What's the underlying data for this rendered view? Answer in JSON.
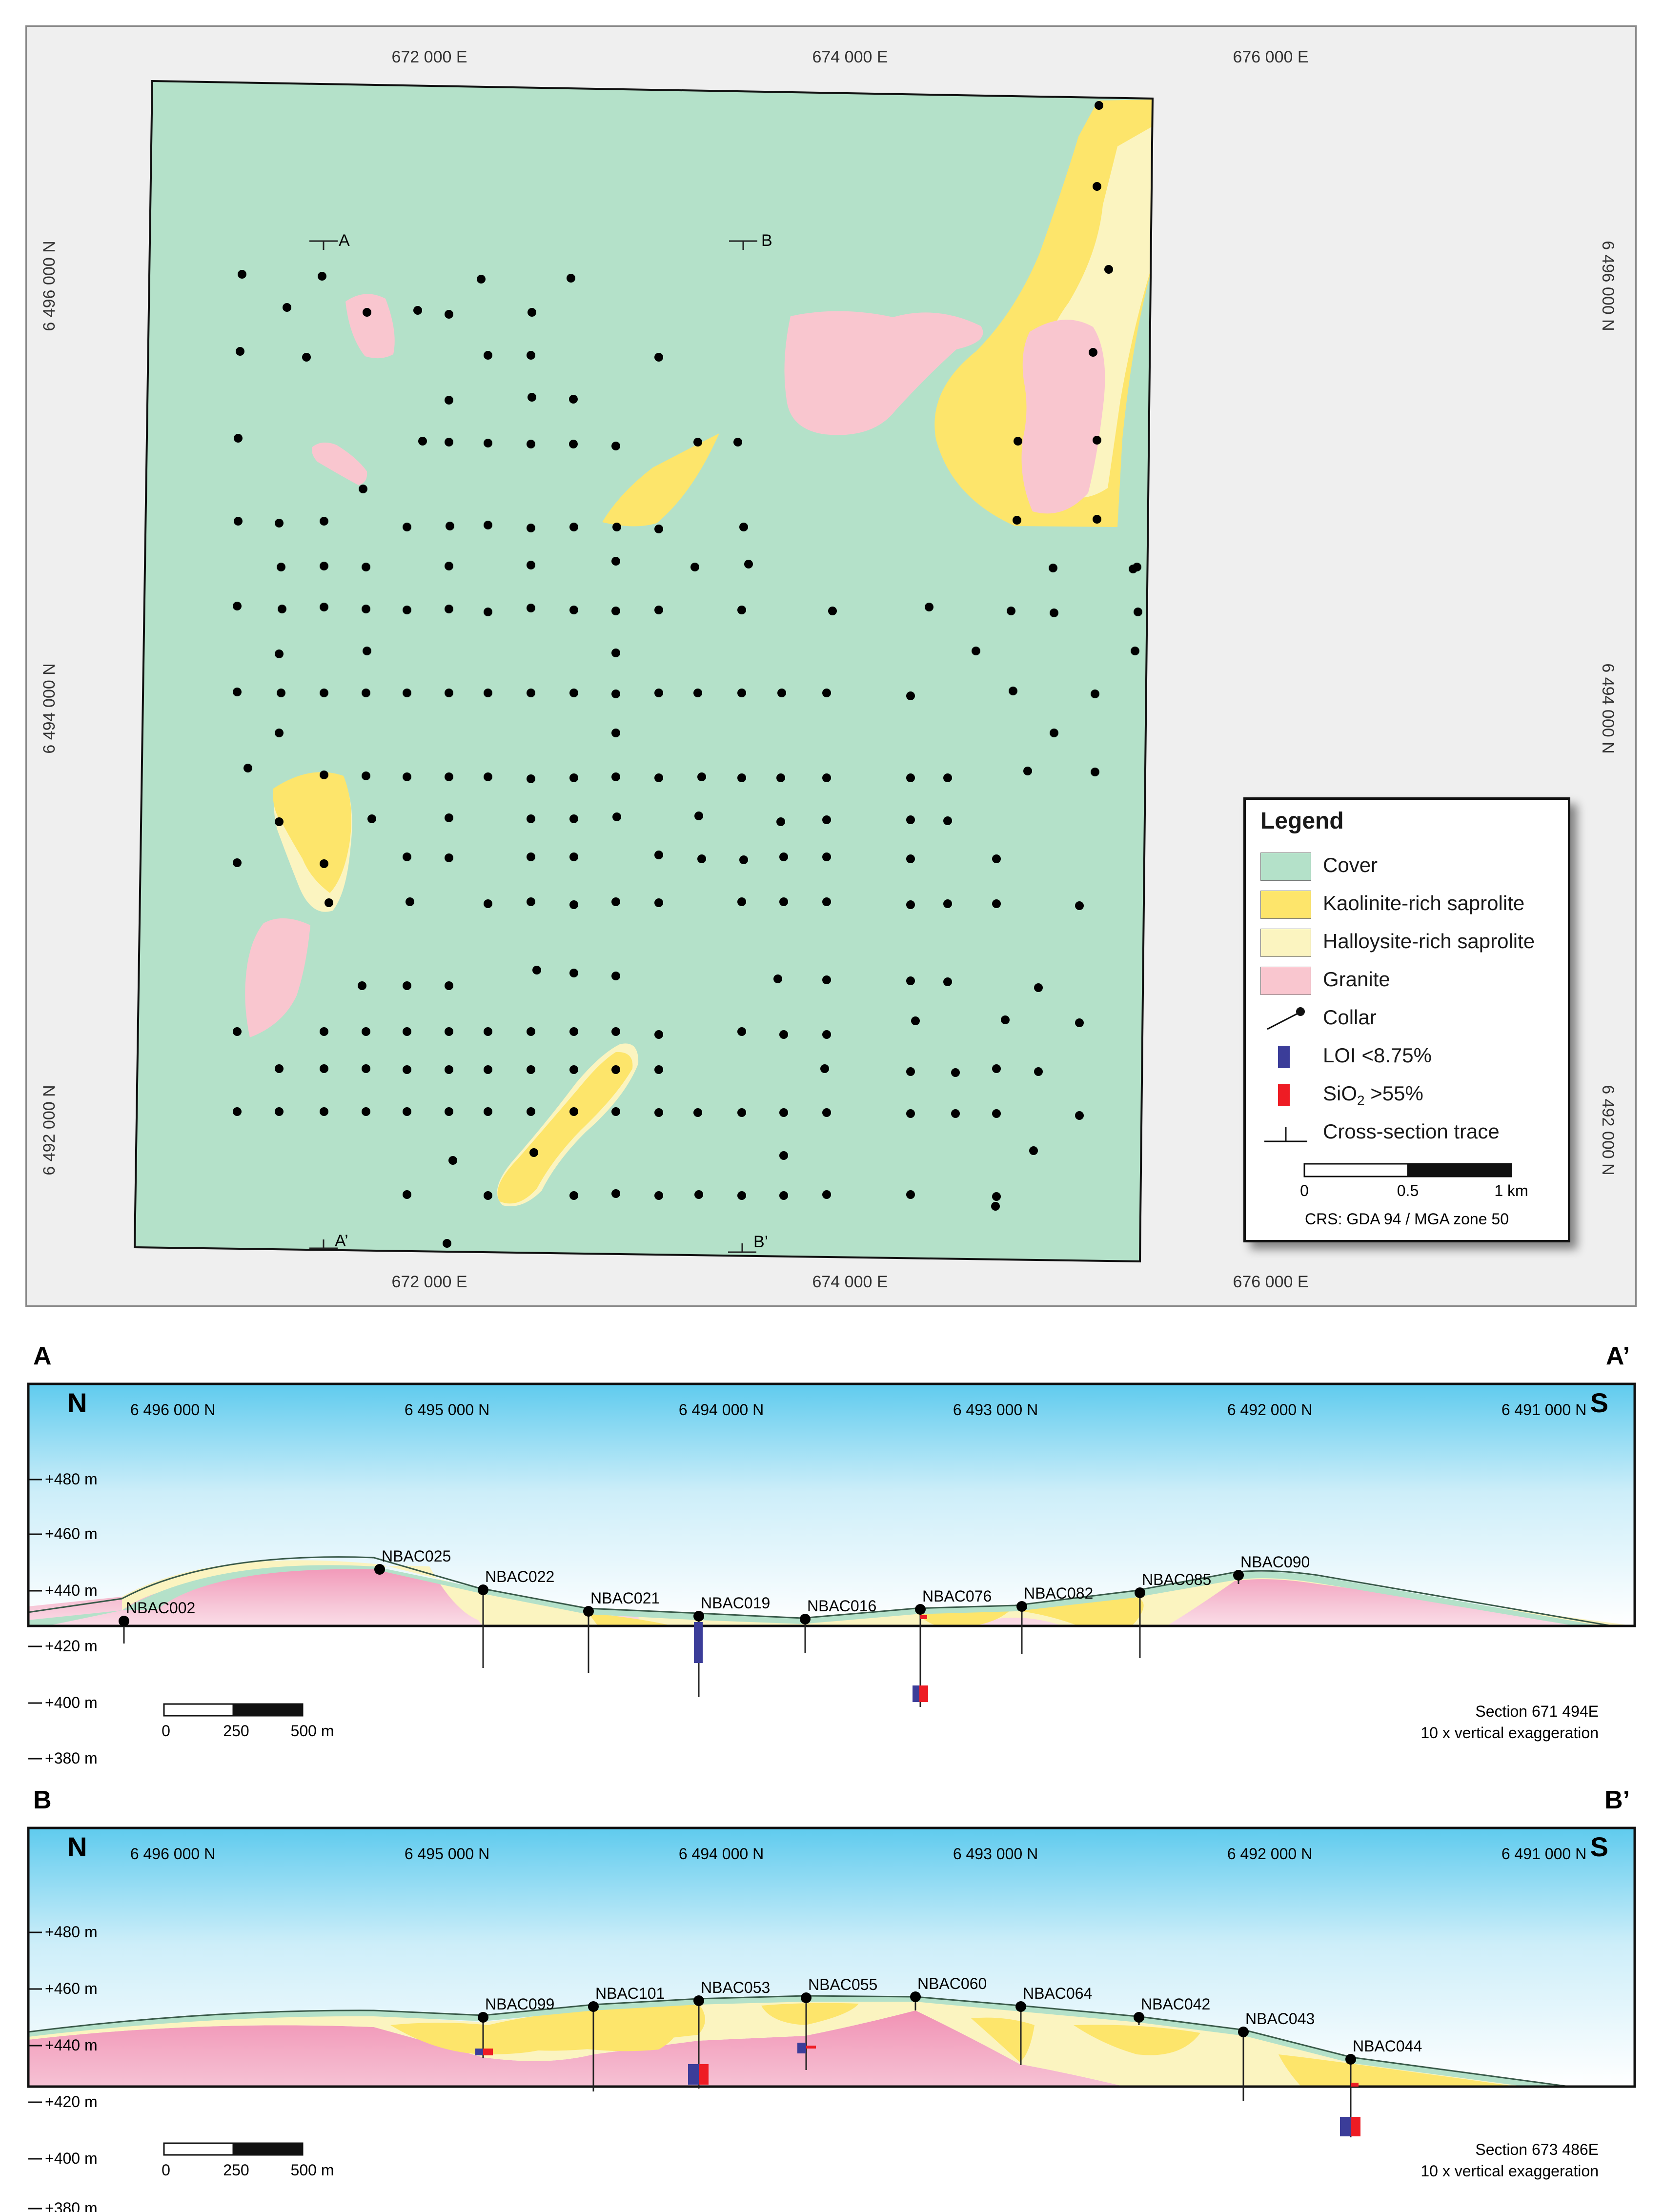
{
  "map": {
    "easting_labels": [
      "672 000 E",
      "674 000 E",
      "676 000 E"
    ],
    "northing_labels": [
      "6 496 000 N",
      "6 494 000 N",
      "6 492 000 N"
    ],
    "traces": [
      {
        "label_start": "A",
        "label_end": "A’"
      },
      {
        "label_start": "B",
        "label_end": "B’"
      }
    ],
    "colors": {
      "cover": "#b4e1c9",
      "kaolinite": "#fde56b",
      "halloysite": "#fbf4c0",
      "granite": "#f9c6cf",
      "collar": "#000000"
    }
  },
  "legend": {
    "title": "Legend",
    "items": [
      {
        "label": "Cover",
        "symbol": "swatch",
        "color": "#b4e1c9"
      },
      {
        "label": "Kaolinite-rich saprolite",
        "symbol": "swatch",
        "color": "#fde56b"
      },
      {
        "label": "Halloysite-rich saprolite",
        "symbol": "swatch",
        "color": "#fbf4c0"
      },
      {
        "label": "Granite",
        "symbol": "swatch",
        "color": "#f9c6cf"
      },
      {
        "label": "Collar",
        "symbol": "collar-icon"
      },
      {
        "label": "LOI <8.75%",
        "symbol": "bar",
        "color": "#3b3d99"
      },
      {
        "label_main": "SiO",
        "label_sub": "2",
        "label_rest": " >55%",
        "symbol": "bar",
        "color": "#ee1c24"
      },
      {
        "label": "Cross-section trace",
        "symbol": "trace-icon"
      }
    ],
    "scale_bar": {
      "ticks": [
        "0",
        "0.5",
        "1 km"
      ]
    },
    "crs": "CRS: GDA 94 / MGA zone 50"
  },
  "section_a": {
    "letter_start": "A",
    "letter_end": "A’",
    "dir_left": "N",
    "dir_right": "S",
    "northings": [
      "6 496 000 N",
      "6 495 000 N",
      "6 494 000 N",
      "6 493 000 N",
      "6 492 000 N",
      "6 491 000 N"
    ],
    "elevations": [
      "+480 m",
      "+460 m",
      "+440 m",
      "+420 m",
      "+400 m",
      "+380 m"
    ],
    "holes": [
      "NBAC002",
      "NBAC025",
      "NBAC022",
      "NBAC021",
      "NBAC019",
      "NBAC016",
      "NBAC076",
      "NBAC082",
      "NBAC085",
      "NBAC090"
    ],
    "scale_ticks": [
      "0",
      "250",
      "500 m"
    ],
    "section_name": "Section 671 494E",
    "exaggeration": "10 x vertical exaggeration"
  },
  "section_b": {
    "letter_start": "B",
    "letter_end": "B’",
    "dir_left": "N",
    "dir_right": "S",
    "northings": [
      "6 496 000 N",
      "6 495 000 N",
      "6 494 000 N",
      "6 493 000 N",
      "6 492 000 N",
      "6 491 000 N"
    ],
    "elevations": [
      "+480 m",
      "+460 m",
      "+440 m",
      "+420 m",
      "+400 m",
      "+380 m"
    ],
    "holes": [
      "NBAC099",
      "NBAC101",
      "NBAC053",
      "NBAC055",
      "NBAC060",
      "NBAC064",
      "NBAC042",
      "NBAC043",
      "NBAC044"
    ],
    "scale_ticks": [
      "0",
      "250",
      "500 m"
    ],
    "section_name": "Section 673 486E",
    "exaggeration": "10 x vertical exaggeration"
  }
}
